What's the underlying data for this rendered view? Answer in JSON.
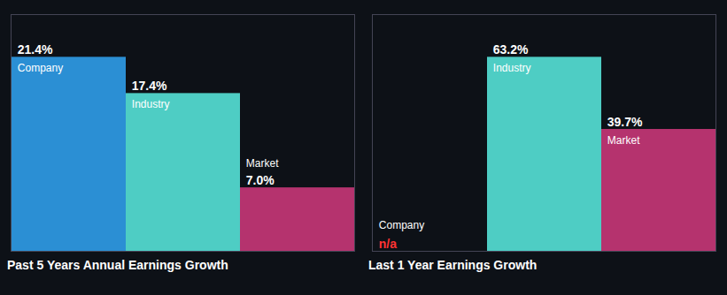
{
  "chart_data": [
    {
      "type": "bar",
      "title": "Past 5 Years Annual Earnings Growth",
      "categories": [
        "Company",
        "Industry",
        "Market"
      ],
      "values": [
        21.4,
        17.4,
        7.0
      ],
      "value_labels": [
        "21.4%",
        "17.4%",
        "7.0%"
      ],
      "colors": [
        "#2b8fd4",
        "#4ecdc4",
        "#b5336e"
      ],
      "ylim": [
        0,
        26.108
      ],
      "data_labels": true,
      "tick_labels": false,
      "grid": false
    },
    {
      "type": "bar",
      "title": "Last 1 Year Earnings Growth",
      "categories": [
        "Company",
        "Industry",
        "Market"
      ],
      "values": [
        null,
        63.2,
        39.7
      ],
      "value_labels": [
        "n/a",
        "63.2%",
        "39.7%"
      ],
      "colors": [
        "#2b8fd4",
        "#4ecdc4",
        "#b5336e"
      ],
      "ylim": [
        0,
        77.104
      ],
      "data_labels": true,
      "tick_labels": false,
      "grid": false
    }
  ]
}
